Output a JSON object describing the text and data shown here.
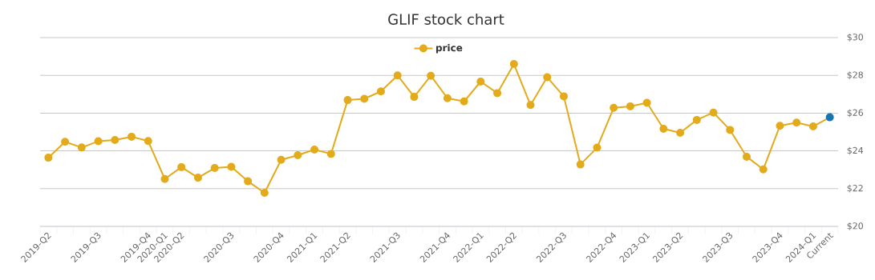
{
  "chart_data": {
    "type": "line",
    "title": "GLIF stock chart",
    "categories": [
      "2019-Q2",
      null,
      null,
      "2019-Q3",
      null,
      null,
      "2019-Q4",
      "2020-Q1",
      "2020-Q2",
      null,
      null,
      "2020-Q3",
      null,
      null,
      "2020-Q4",
      null,
      "2021-Q1",
      null,
      "2021-Q2",
      null,
      null,
      "2021-Q3",
      null,
      null,
      "2021-Q4",
      null,
      "2022-Q1",
      null,
      "2022-Q2",
      null,
      null,
      "2022-Q3",
      null,
      null,
      "2022-Q4",
      null,
      "2023-Q1",
      null,
      "2023-Q2",
      null,
      null,
      "2023-Q3",
      null,
      null,
      "2023-Q4",
      null,
      "2024-Q1",
      "Current"
    ],
    "series": [
      {
        "name": "price",
        "color": "#e3ab1b",
        "colors": [
          "#e3ab1b",
          "#e3ab1b",
          "#e3ab1b",
          "#e3ab1b",
          "#e3ab1b",
          "#e3ab1b",
          "#e3ab1b",
          "#e3ab1b",
          "#e3ab1b",
          "#e3ab1b",
          "#e3ab1b",
          "#e3ab1b",
          "#e3ab1b",
          "#e3ab1b",
          "#e3ab1b",
          "#e3ab1b",
          "#e3ab1b",
          "#e3ab1b",
          "#e3ab1b",
          "#e3ab1b",
          "#e3ab1b",
          "#e3ab1b",
          "#e3ab1b",
          "#e3ab1b",
          "#e3ab1b",
          "#e3ab1b",
          "#e3ab1b",
          "#e3ab1b",
          "#e3ab1b",
          "#e3ab1b",
          "#e3ab1b",
          "#e3ab1b",
          "#e3ab1b",
          "#e3ab1b",
          "#e3ab1b",
          "#e3ab1b",
          "#e3ab1b",
          "#e3ab1b",
          "#e3ab1b",
          "#e3ab1b",
          "#e3ab1b",
          "#e3ab1b",
          "#e3ab1b",
          "#e3ab1b",
          "#e3ab1b",
          "#e3ab1b",
          "#e3ab1b",
          "#1a74b0"
        ],
        "values": [
          23.64,
          24.48,
          24.18,
          24.51,
          24.58,
          24.75,
          24.52,
          22.51,
          23.14,
          22.58,
          23.09,
          23.16,
          22.39,
          21.78,
          23.53,
          23.77,
          24.07,
          23.84,
          26.69,
          26.76,
          27.15,
          28.0,
          26.86,
          27.98,
          26.79,
          26.62,
          27.67,
          27.06,
          28.6,
          26.43,
          27.9,
          26.89,
          23.28,
          24.17,
          26.28,
          26.36,
          26.55,
          25.17,
          24.96,
          25.64,
          26.03,
          25.11,
          23.69,
          23.02,
          25.33,
          25.5,
          25.3,
          25.78
        ]
      }
    ],
    "ylim": [
      20,
      30
    ],
    "yticks": [
      {
        "value": 20,
        "label": "$20"
      },
      {
        "value": 22,
        "label": "$22"
      },
      {
        "value": 24,
        "label": "$24"
      },
      {
        "value": 26,
        "label": "$26"
      },
      {
        "value": 28,
        "label": "$28"
      },
      {
        "value": 30,
        "label": "$30"
      }
    ],
    "grid": "y",
    "legend": "top",
    "marker": "circle",
    "line_style": "solid"
  }
}
